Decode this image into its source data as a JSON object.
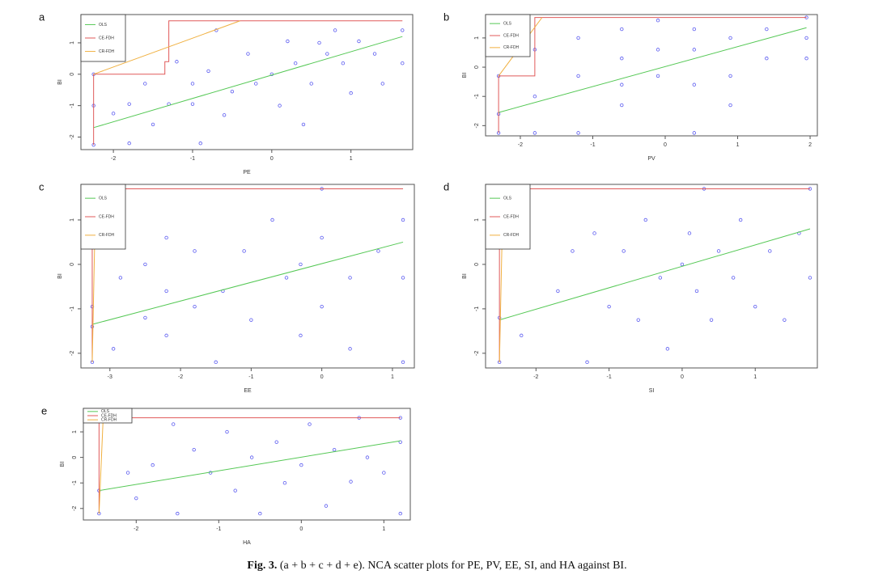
{
  "chart_data": [
    {
      "type": "scatter",
      "panel": "a",
      "x_label": "PE",
      "y_label": "BI",
      "xlim": [
        -2.41,
        1.78
      ],
      "ylim": [
        -2.4,
        1.9
      ],
      "xticks": [
        -2,
        -1,
        0,
        1
      ],
      "yticks": [
        -2,
        -1,
        0,
        1
      ],
      "point_color": "#5a5af0",
      "points": [
        [
          -2.25,
          -2.25
        ],
        [
          -2.25,
          -1.0
        ],
        [
          -2.25,
          0
        ],
        [
          -2.0,
          -1.25
        ],
        [
          -1.8,
          -0.95
        ],
        [
          -1.8,
          -2.2
        ],
        [
          -1.6,
          -0.3
        ],
        [
          -1.5,
          -1.6
        ],
        [
          -1.3,
          -0.95
        ],
        [
          -1.2,
          0.4
        ],
        [
          -1.0,
          -0.95
        ],
        [
          -0.9,
          -2.2
        ],
        [
          -0.8,
          0.1
        ],
        [
          -0.7,
          1.4
        ],
        [
          -0.5,
          -0.55
        ],
        [
          -0.3,
          0.65
        ],
        [
          -0.2,
          -0.3
        ],
        [
          0,
          0
        ],
        [
          0.1,
          -1.0
        ],
        [
          0.2,
          1.05
        ],
        [
          0.3,
          0.35
        ],
        [
          0.5,
          -0.3
        ],
        [
          0.6,
          1.0
        ],
        [
          0.7,
          0.65
        ],
        [
          0.9,
          0.35
        ],
        [
          1.0,
          -0.6
        ],
        [
          1.1,
          1.05
        ],
        [
          1.3,
          0.65
        ],
        [
          1.4,
          -0.3
        ],
        [
          1.65,
          1.4
        ],
        [
          1.65,
          0.35
        ],
        [
          -0.6,
          -1.3
        ],
        [
          0.4,
          -1.6
        ],
        [
          -1.0,
          -0.3
        ],
        [
          0.8,
          1.4
        ]
      ],
      "series": [
        {
          "name": "OLS",
          "color": "#55c855",
          "x": [
            -2.25,
            1.65
          ],
          "values": [
            -1.7,
            1.2
          ]
        },
        {
          "name": "CE-FDH",
          "color": "#e05a5a",
          "x": [
            -2.25,
            -2.25,
            -1.35,
            -1.35,
            -1.3,
            -1.3,
            1.65
          ],
          "values": [
            -2.25,
            0,
            0,
            0.4,
            0.4,
            1.7,
            1.7
          ]
        },
        {
          "name": "CR-FDH",
          "color": "#f0b040",
          "x": [
            -2.25,
            -0.4
          ],
          "values": [
            0,
            1.7
          ]
        }
      ]
    },
    {
      "type": "scatter",
      "panel": "b",
      "x_label": "PV",
      "y_label": "BI",
      "xlim": [
        -2.48,
        2.1
      ],
      "ylim": [
        -2.35,
        1.8
      ],
      "xticks": [
        -2,
        -1,
        0,
        1,
        2
      ],
      "yticks": [
        -2,
        -1,
        0,
        1
      ],
      "point_color": "#5a5af0",
      "points": [
        [
          -2.3,
          -2.25
        ],
        [
          -2.3,
          -1.6
        ],
        [
          -2.3,
          -0.3
        ],
        [
          -1.8,
          -1.0
        ],
        [
          -1.8,
          -2.25
        ],
        [
          -1.8,
          0.6
        ],
        [
          -1.2,
          1.0
        ],
        [
          -1.2,
          -0.3
        ],
        [
          -1.2,
          -2.25
        ],
        [
          -0.6,
          1.3
        ],
        [
          -0.6,
          0.3
        ],
        [
          -0.6,
          -0.6
        ],
        [
          -0.6,
          -1.3
        ],
        [
          -0.1,
          1.6
        ],
        [
          -0.1,
          0.6
        ],
        [
          -0.1,
          -0.3
        ],
        [
          0.4,
          1.3
        ],
        [
          0.4,
          0.6
        ],
        [
          0.4,
          -0.6
        ],
        [
          0.4,
          -2.25
        ],
        [
          0.9,
          1.0
        ],
        [
          0.9,
          -0.3
        ],
        [
          0.9,
          -1.3
        ],
        [
          1.4,
          1.3
        ],
        [
          1.4,
          0.3
        ],
        [
          1.95,
          1.0
        ],
        [
          1.95,
          0.3
        ],
        [
          1.95,
          1.7
        ]
      ],
      "series": [
        {
          "name": "OLS",
          "color": "#55c855",
          "x": [
            -2.3,
            1.95
          ],
          "values": [
            -1.55,
            1.35
          ]
        },
        {
          "name": "CE-FDH",
          "color": "#e05a5a",
          "x": [
            -2.3,
            -2.3,
            -1.8,
            -1.8,
            1.95
          ],
          "values": [
            -2.25,
            -0.3,
            -0.3,
            1.7,
            1.7
          ]
        },
        {
          "name": "CR-FDH",
          "color": "#f0b040",
          "x": [
            -2.3,
            -1.7
          ],
          "values": [
            -0.3,
            1.7
          ]
        }
      ]
    },
    {
      "type": "scatter",
      "panel": "c",
      "x_label": "EE",
      "y_label": "BI",
      "xlim": [
        -3.41,
        1.31
      ],
      "ylim": [
        -2.33,
        1.8
      ],
      "xticks": [
        -3,
        -2,
        -1,
        0,
        1
      ],
      "yticks": [
        -2,
        -1,
        0,
        1
      ],
      "point_color": "#5a5af0",
      "points": [
        [
          -3.25,
          -2.2
        ],
        [
          -3.25,
          -1.4
        ],
        [
          -3.25,
          -0.95
        ],
        [
          -3.25,
          1.7
        ],
        [
          -2.95,
          -1.9
        ],
        [
          -2.85,
          -0.3
        ],
        [
          -2.5,
          -1.2
        ],
        [
          -2.5,
          0
        ],
        [
          -2.2,
          -1.6
        ],
        [
          -2.2,
          -0.6
        ],
        [
          -2.2,
          0.6
        ],
        [
          -1.8,
          -0.95
        ],
        [
          -1.8,
          0.3
        ],
        [
          -1.5,
          -2.2
        ],
        [
          -1.4,
          -0.6
        ],
        [
          -1.1,
          0.3
        ],
        [
          -1.0,
          -1.25
        ],
        [
          -0.7,
          1.0
        ],
        [
          -0.5,
          -0.3
        ],
        [
          -0.3,
          0
        ],
        [
          -0.3,
          -1.6
        ],
        [
          0,
          -0.95
        ],
        [
          0,
          0.6
        ],
        [
          0,
          1.7
        ],
        [
          0.4,
          -0.3
        ],
        [
          0.4,
          -1.9
        ],
        [
          0.8,
          0.3
        ],
        [
          1.15,
          1.0
        ],
        [
          1.15,
          -2.2
        ],
        [
          1.15,
          -0.3
        ]
      ],
      "series": [
        {
          "name": "OLS",
          "color": "#55c855",
          "x": [
            -3.25,
            1.15
          ],
          "values": [
            -1.35,
            0.5
          ]
        },
        {
          "name": "CE-FDH",
          "color": "#e05a5a",
          "x": [
            -3.25,
            -3.25,
            1.15
          ],
          "values": [
            -2.2,
            1.7,
            1.7
          ]
        },
        {
          "name": "CR-FDH",
          "color": "#f0b040",
          "x": [
            -3.25,
            -3.2
          ],
          "values": [
            -2.2,
            1.7
          ]
        }
      ]
    },
    {
      "type": "scatter",
      "panel": "d",
      "x_label": "SI",
      "y_label": "BI",
      "xlim": [
        -2.69,
        1.85
      ],
      "ylim": [
        -2.33,
        1.8
      ],
      "xticks": [
        -2,
        -1,
        0,
        1
      ],
      "yticks": [
        -2,
        -1,
        0,
        1
      ],
      "point_color": "#5a5af0",
      "points": [
        [
          -2.5,
          -2.2
        ],
        [
          -2.5,
          -1.2
        ],
        [
          -2.5,
          1.7
        ],
        [
          -2.2,
          -1.6
        ],
        [
          -1.7,
          -0.6
        ],
        [
          -1.5,
          0.3
        ],
        [
          -1.3,
          -2.2
        ],
        [
          -1.2,
          0.7
        ],
        [
          -1.0,
          -0.95
        ],
        [
          -0.8,
          0.3
        ],
        [
          -0.6,
          -1.25
        ],
        [
          -0.5,
          1.0
        ],
        [
          -0.3,
          -0.3
        ],
        [
          -0.2,
          -1.9
        ],
        [
          0,
          0
        ],
        [
          0.1,
          0.7
        ],
        [
          0.2,
          -0.6
        ],
        [
          0.3,
          1.7
        ],
        [
          0.4,
          -1.25
        ],
        [
          0.5,
          0.3
        ],
        [
          0.7,
          -0.3
        ],
        [
          0.8,
          1.0
        ],
        [
          1.0,
          -0.95
        ],
        [
          1.2,
          0.3
        ],
        [
          1.4,
          -1.25
        ],
        [
          1.6,
          0.7
        ],
        [
          1.75,
          1.7
        ],
        [
          1.75,
          -0.3
        ]
      ],
      "series": [
        {
          "name": "OLS",
          "color": "#55c855",
          "x": [
            -2.5,
            1.75
          ],
          "values": [
            -1.25,
            0.8
          ]
        },
        {
          "name": "CE-FDH",
          "color": "#e05a5a",
          "x": [
            -2.5,
            -2.5,
            1.75
          ],
          "values": [
            -2.2,
            1.7,
            1.7
          ]
        },
        {
          "name": "CR-FDH",
          "color": "#f0b040",
          "x": [
            -2.5,
            -2.45
          ],
          "values": [
            -2.2,
            1.7
          ]
        }
      ]
    },
    {
      "type": "scatter",
      "panel": "e",
      "x_label": "HA",
      "y_label": "BI",
      "xlim": [
        -2.64,
        1.32
      ],
      "ylim": [
        -2.45,
        1.92
      ],
      "xticks": [
        -2,
        -1,
        0,
        1
      ],
      "yticks": [
        -2,
        -1,
        0,
        1
      ],
      "point_color": "#5a5af0",
      "points": [
        [
          -2.45,
          -2.2
        ],
        [
          -2.45,
          -1.3
        ],
        [
          -2.45,
          1.55
        ],
        [
          -2.1,
          -0.6
        ],
        [
          -2.0,
          -1.6
        ],
        [
          -1.8,
          -0.3
        ],
        [
          -1.55,
          1.3
        ],
        [
          -1.5,
          -2.2
        ],
        [
          -1.3,
          0.3
        ],
        [
          -1.1,
          -0.6
        ],
        [
          -0.9,
          1.0
        ],
        [
          -0.8,
          -1.3
        ],
        [
          -0.6,
          0
        ],
        [
          -0.5,
          -2.2
        ],
        [
          -0.3,
          0.6
        ],
        [
          -0.2,
          -1.0
        ],
        [
          0,
          -0.3
        ],
        [
          0.1,
          1.3
        ],
        [
          0.3,
          -1.9
        ],
        [
          0.4,
          0.3
        ],
        [
          0.6,
          -0.95
        ],
        [
          0.7,
          1.55
        ],
        [
          0.8,
          0
        ],
        [
          1.0,
          -0.6
        ],
        [
          1.2,
          0.6
        ],
        [
          1.2,
          -2.2
        ],
        [
          1.2,
          1.55
        ]
      ],
      "series": [
        {
          "name": "OLS",
          "color": "#55c855",
          "x": [
            -2.45,
            1.2
          ],
          "values": [
            -1.3,
            0.65
          ]
        },
        {
          "name": "CE-FDH",
          "color": "#e05a5a",
          "x": [
            -2.45,
            -2.45,
            1.2
          ],
          "values": [
            -2.2,
            1.55,
            1.55
          ]
        },
        {
          "name": "CR-FDH",
          "color": "#f0b040",
          "x": [
            -2.45,
            -2.4
          ],
          "values": [
            -2.2,
            1.55
          ]
        }
      ]
    }
  ],
  "caption": {
    "label": "Fig. 3.",
    "text": "(a + b + c + d + e). NCA scatter plots for PE, PV, EE, SI, and HA against BI."
  }
}
